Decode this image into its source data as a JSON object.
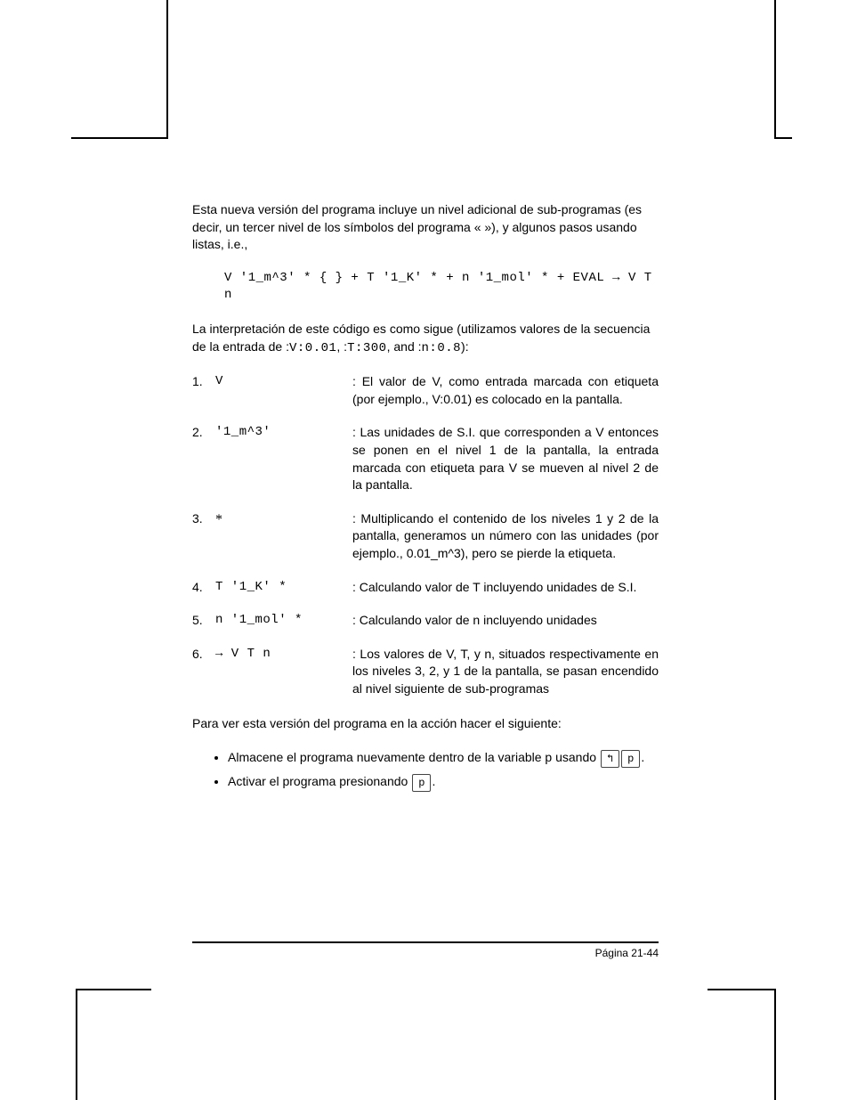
{
  "intro1": "Esta nueva versión del programa incluye un nivel adicional de sub-programas (es decir, un tercer nivel de los símbolos del programa « »),  y algunos pasos usando listas, i.e.,",
  "codeLine": "V '1_m^3' * { } + T '1_K' * + n '1_mol' * + EVAL → V T n",
  "intro2_a": "La interpretación de este código es como sigue (utilizamos valores de la secuencia de la entrada de :",
  "intro2_b": "V:0.01",
  "intro2_c": ", :",
  "intro2_d": "T:300",
  "intro2_e": ", and :",
  "intro2_f": "n:0.8",
  "intro2_g": "):",
  "items": [
    {
      "n": "1.",
      "term": "V",
      "desc": ": El valor de V, como entrada marcada con etiqueta (por ejemplo., V:0.01) es colocado en la pantalla."
    },
    {
      "n": "2.",
      "term": "'1_m^3'",
      "desc": ": Las unidades de S.I. que corresponden a V entonces se ponen en el nivel 1 de la pantalla, la entrada marcada con etiqueta para V se mueven al nivel 2 de la pantalla."
    },
    {
      "n": "3.",
      "term": "*",
      "desc": ": Multiplicando el contenido de los niveles 1 y 2 de la pantalla, generamos un número con las unidades (por ejemplo., 0.01_m^3), pero se pierde la etiqueta."
    },
    {
      "n": "4.",
      "term": "T '1_K' *",
      "desc": ": Calculando valor de T incluyendo unidades de S.I."
    },
    {
      "n": "5.",
      "term": "n '1_mol' *",
      "desc": ": Calculando valor de n incluyendo unidades"
    },
    {
      "n": "6.",
      "term": "→ V T n",
      "desc": ": Los valores de V, T, y n, situados respectivamente en los niveles 3, 2, y 1 de la pantalla, se pasan encendido al nivel siguiente de sub-programas"
    }
  ],
  "outro": "Para ver esta versión del programa en la acción hacer el siguiente:",
  "bullet1_a": "Almacene el programa nuevamente dentro de la variable p usando ",
  "bullet1_key1": "↰",
  "bullet1_key2": " p ",
  "bullet1_b": ".",
  "bullet2_a": "Activar el programa presionando ",
  "bullet2_key": " p ",
  "bullet2_b": ".",
  "pageNumber": "Página 21-44"
}
